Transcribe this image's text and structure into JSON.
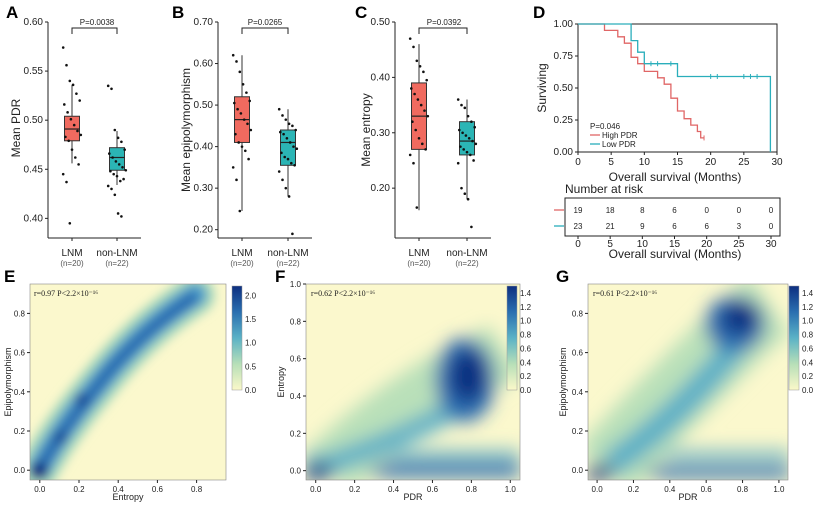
{
  "colors": {
    "lnm": "#f06a5f",
    "non_lnm": "#2bb5b5",
    "high": "#e06666",
    "low": "#2aaebb",
    "box_edge": "#333333"
  },
  "panels": {
    "A": {
      "label": "A",
      "ylabel": "Mean PDR",
      "p": "P=0.0038"
    },
    "B": {
      "label": "B",
      "ylabel": "Mean epipolymorphism",
      "p": "P=0.0265"
    },
    "C": {
      "label": "C",
      "ylabel": "Mean entropy",
      "p": "P=0.0392"
    },
    "D": {
      "label": "D"
    },
    "E": {
      "label": "E",
      "xlabel": "Entropy",
      "ylabel": "Epipolymorphism",
      "corr": "r=0.97 P<2.2×10⁻¹⁶"
    },
    "F": {
      "label": "F",
      "xlabel": "PDR",
      "ylabel": "Entropy",
      "corr": "r=0.62 P<2.2×10⁻¹⁶"
    },
    "G": {
      "label": "G",
      "xlabel": "PDR",
      "ylabel": "Epipolymorphism",
      "corr": "r=0.61 P<2.2×10⁻¹⁶"
    }
  },
  "groups": {
    "lnm": "LNM",
    "lnm_n": "(n=20)",
    "non_lnm": "non-LNM",
    "non_lnm_n": "(n=22)"
  },
  "survival": {
    "p": "P=0.046",
    "legend_high": "High PDR",
    "legend_low": "Low  PDR",
    "risk_title": "Number at risk",
    "risk_xlabel": "Overall survival (Months)"
  },
  "chart_data": [
    {
      "type": "box",
      "id": "A",
      "categories": [
        "LNM",
        "non-LNM"
      ],
      "ylim": [
        0.38,
        0.6
      ],
      "yticks": [
        0.4,
        0.45,
        0.5,
        0.55,
        0.6
      ],
      "tick_labels": [
        "0.40",
        "0.45",
        "0.50",
        "0.55",
        "0.60"
      ],
      "boxes": [
        {
          "q1": 0.479,
          "med": 0.491,
          "q3": 0.504,
          "lo": 0.456,
          "hi": 0.536
        },
        {
          "q1": 0.449,
          "med": 0.462,
          "q3": 0.472,
          "lo": 0.434,
          "hi": 0.489
        }
      ],
      "points": [
        [
          0.574,
          0.556,
          0.54,
          0.536,
          0.527,
          0.52,
          0.516,
          0.508,
          0.501,
          0.495,
          0.489,
          0.485,
          0.483,
          0.479,
          0.47,
          0.462,
          0.455,
          0.445,
          0.437,
          0.395
        ],
        [
          0.535,
          0.532,
          0.49,
          0.482,
          0.478,
          0.47,
          0.466,
          0.462,
          0.458,
          0.455,
          0.452,
          0.449,
          0.448,
          0.445,
          0.443,
          0.438,
          0.44,
          0.433,
          0.43,
          0.424,
          0.405,
          0.402
        ]
      ]
    },
    {
      "type": "box",
      "id": "B",
      "categories": [
        "LNM",
        "non-LNM"
      ],
      "ylim": [
        0.18,
        0.7
      ],
      "yticks": [
        0.2,
        0.3,
        0.4,
        0.5,
        0.6,
        0.7
      ],
      "tick_labels": [
        "0.20",
        "0.30",
        "0.40",
        "0.50",
        "0.60",
        "0.70"
      ],
      "boxes": [
        {
          "q1": 0.41,
          "med": 0.465,
          "q3": 0.52,
          "lo": 0.245,
          "hi": 0.62
        },
        {
          "q1": 0.355,
          "med": 0.41,
          "q3": 0.44,
          "lo": 0.28,
          "hi": 0.49
        }
      ],
      "points": [
        [
          0.62,
          0.605,
          0.58,
          0.55,
          0.53,
          0.51,
          0.505,
          0.49,
          0.48,
          0.465,
          0.455,
          0.44,
          0.43,
          0.41,
          0.4,
          0.39,
          0.37,
          0.35,
          0.32,
          0.245
        ],
        [
          0.49,
          0.475,
          0.465,
          0.455,
          0.45,
          0.44,
          0.435,
          0.43,
          0.42,
          0.41,
          0.4,
          0.395,
          0.385,
          0.375,
          0.37,
          0.36,
          0.355,
          0.34,
          0.32,
          0.3,
          0.28,
          0.19
        ]
      ]
    },
    {
      "type": "box",
      "id": "C",
      "categories": [
        "LNM",
        "non-LNM"
      ],
      "ylim": [
        0.11,
        0.5
      ],
      "yticks": [
        0.2,
        0.3,
        0.4,
        0.5
      ],
      "tick_labels": [
        "0.20",
        "0.30",
        "0.40",
        "0.50"
      ],
      "boxes": [
        {
          "q1": 0.27,
          "med": 0.33,
          "q3": 0.39,
          "lo": 0.16,
          "hi": 0.46
        },
        {
          "q1": 0.26,
          "med": 0.285,
          "q3": 0.32,
          "lo": 0.18,
          "hi": 0.36
        }
      ],
      "points": [
        [
          0.47,
          0.455,
          0.43,
          0.42,
          0.41,
          0.395,
          0.38,
          0.37,
          0.36,
          0.35,
          0.34,
          0.33,
          0.32,
          0.305,
          0.29,
          0.28,
          0.27,
          0.26,
          0.245,
          0.165
        ],
        [
          0.36,
          0.35,
          0.345,
          0.33,
          0.32,
          0.31,
          0.305,
          0.3,
          0.295,
          0.29,
          0.285,
          0.28,
          0.275,
          0.27,
          0.265,
          0.26,
          0.25,
          0.245,
          0.2,
          0.19,
          0.18,
          0.13
        ]
      ]
    },
    {
      "type": "line",
      "id": "D",
      "title": "",
      "xlabel": "Overall survival (Months)",
      "ylabel": "Surviving",
      "xlim": [
        0,
        30
      ],
      "ylim": [
        0,
        1
      ],
      "xticks": [
        0,
        5,
        10,
        15,
        20,
        25,
        30
      ],
      "yticks": [
        0,
        0.25,
        0.5,
        0.75,
        1
      ],
      "ytick_labels": [
        "0.00",
        "0.25",
        "0.50",
        "0.75",
        "1.00"
      ],
      "series": [
        {
          "name": "High PDR",
          "steps": [
            [
              0,
              1
            ],
            [
              4,
              1
            ],
            [
              4,
              0.95
            ],
            [
              6,
              0.95
            ],
            [
              6,
              0.9
            ],
            [
              7,
              0.9
            ],
            [
              7,
              0.85
            ],
            [
              8,
              0.85
            ],
            [
              8,
              0.74
            ],
            [
              9,
              0.74
            ],
            [
              9,
              0.69
            ],
            [
              10,
              0.69
            ],
            [
              10,
              0.63
            ],
            [
              12,
              0.63
            ],
            [
              12,
              0.58
            ],
            [
              13,
              0.58
            ],
            [
              13,
              0.53
            ],
            [
              14,
              0.53
            ],
            [
              14,
              0.42
            ],
            [
              15,
              0.42
            ],
            [
              15,
              0.32
            ],
            [
              16,
              0.32
            ],
            [
              16,
              0.26
            ],
            [
              17,
              0.26
            ],
            [
              17,
              0.21
            ],
            [
              18,
              0.21
            ],
            [
              18,
              0.16
            ],
            [
              18.5,
              0.16
            ],
            [
              18.5,
              0.11
            ],
            [
              19,
              0.11
            ]
          ],
          "censor": [
            [
              19,
              0.11
            ]
          ]
        },
        {
          "name": "Low PDR",
          "steps": [
            [
              0,
              1
            ],
            [
              8,
              1
            ],
            [
              8,
              0.87
            ],
            [
              9,
              0.87
            ],
            [
              9,
              0.78
            ],
            [
              10,
              0.78
            ],
            [
              10,
              0.69
            ],
            [
              15,
              0.69
            ],
            [
              15,
              0.59
            ],
            [
              29,
              0.59
            ],
            [
              29,
              0
            ]
          ],
          "censor": [
            [
              11,
              0.69
            ],
            [
              12,
              0.69
            ],
            [
              14,
              0.69
            ],
            [
              20,
              0.59
            ],
            [
              21,
              0.59
            ],
            [
              25,
              0.59
            ],
            [
              26,
              0.59
            ],
            [
              27,
              0.59
            ]
          ]
        }
      ],
      "risk_table": {
        "rows": [
          [
            19,
            18,
            8,
            6,
            0,
            0,
            0
          ],
          [
            23,
            21,
            9,
            6,
            6,
            3,
            0
          ]
        ]
      }
    },
    {
      "type": "heatmap",
      "id": "E",
      "xlabel": "Entropy",
      "ylabel": "Epipolymorphism",
      "xticks": [
        0.0,
        0.2,
        0.4,
        0.6,
        0.8
      ],
      "yticks": [
        0.0,
        0.2,
        0.4,
        0.6,
        0.8
      ],
      "colorbar": [
        0.0,
        0.5,
        1.0,
        1.5,
        2.0
      ]
    },
    {
      "type": "heatmap",
      "id": "F",
      "xlabel": "PDR",
      "ylabel": "Entropy",
      "xticks": [
        0.0,
        0.2,
        0.4,
        0.6,
        0.8,
        1.0
      ],
      "yticks": [
        0.0,
        0.2,
        0.4,
        0.6,
        0.8,
        1.0
      ],
      "colorbar": [
        0.0,
        0.2,
        0.4,
        0.6,
        0.8,
        1.0,
        1.2,
        1.4
      ]
    },
    {
      "type": "heatmap",
      "id": "G",
      "xlabel": "PDR",
      "ylabel": "Epipolymorphism",
      "xticks": [
        0.0,
        0.2,
        0.4,
        0.6,
        0.8,
        1.0
      ],
      "yticks": [
        0.0,
        0.2,
        0.4,
        0.6,
        0.8
      ],
      "colorbar": [
        0.0,
        0.2,
        0.4,
        0.6,
        0.8,
        1.0,
        1.2,
        1.4
      ]
    }
  ]
}
